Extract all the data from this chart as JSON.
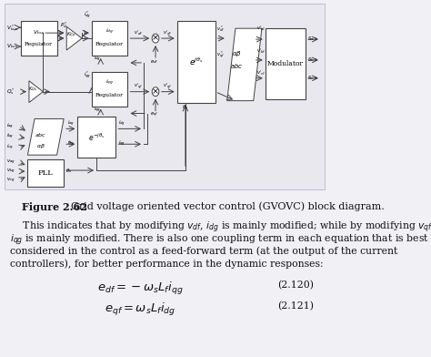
{
  "bg_color": "#f0f0f5",
  "diagram_bg": "#e8e8ee",
  "white": "#ffffff",
  "text_color": "#111111",
  "line_color": "#444444",
  "figure_label_bold": "Figure 2.62",
  "figure_label_rest": "    Grid voltage oriented vector control (GVOVC) block diagram.",
  "body_line1": "    This indicates that by modifying $v_{df}$, $i_{dg}$ is mainly modified; while by modifying $v_{qf}$,",
  "body_line2": "$i_{qg}$ is mainly modified. There is also one coupling term in each equation that is best",
  "body_line3": "considered in the control as a feed-forward term (at the output of the current",
  "body_line4": "controllers), for better performance in the dynamic responses:",
  "eq1": "$e_{df} = -\\omega_s L_f i_{qg}$",
  "eq1_num": "(2.120)",
  "eq2": "$e_{qf} = \\omega_s L_f i_{dg}$",
  "eq2_num": "(2.121)",
  "body_fs": 7.8,
  "caption_fs": 8.0,
  "eq_fs": 9.5
}
